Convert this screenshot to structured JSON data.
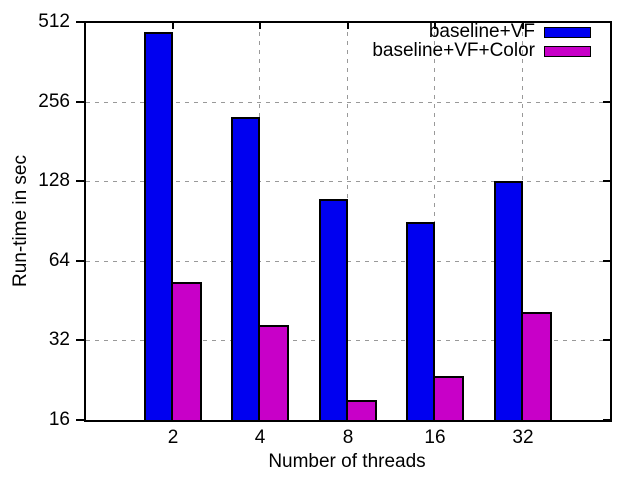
{
  "chart_data": {
    "type": "bar",
    "title": "",
    "xlabel": "Number of threads",
    "ylabel": "Run-time in sec",
    "categories": [
      "2",
      "4",
      "8",
      "16",
      "32"
    ],
    "series": [
      {
        "name": "baseline+VF",
        "color": "#0000f0",
        "values": [
          468,
          224,
          110,
          90,
          128
        ]
      },
      {
        "name": "baseline+VF+Color",
        "color": "#c800c8",
        "values": [
          53,
          36.5,
          19,
          23.5,
          41
        ]
      }
    ],
    "y_scale": "log2",
    "ylim": [
      16,
      512
    ],
    "y_ticks": [
      16,
      32,
      64,
      128,
      256,
      512
    ],
    "grid": true,
    "legend_position": "top-right-inside",
    "colors": {
      "axis": "#000000",
      "grid": "#999999",
      "bar_border": "#000000",
      "background": "#ffffff",
      "text": "#000000"
    }
  }
}
